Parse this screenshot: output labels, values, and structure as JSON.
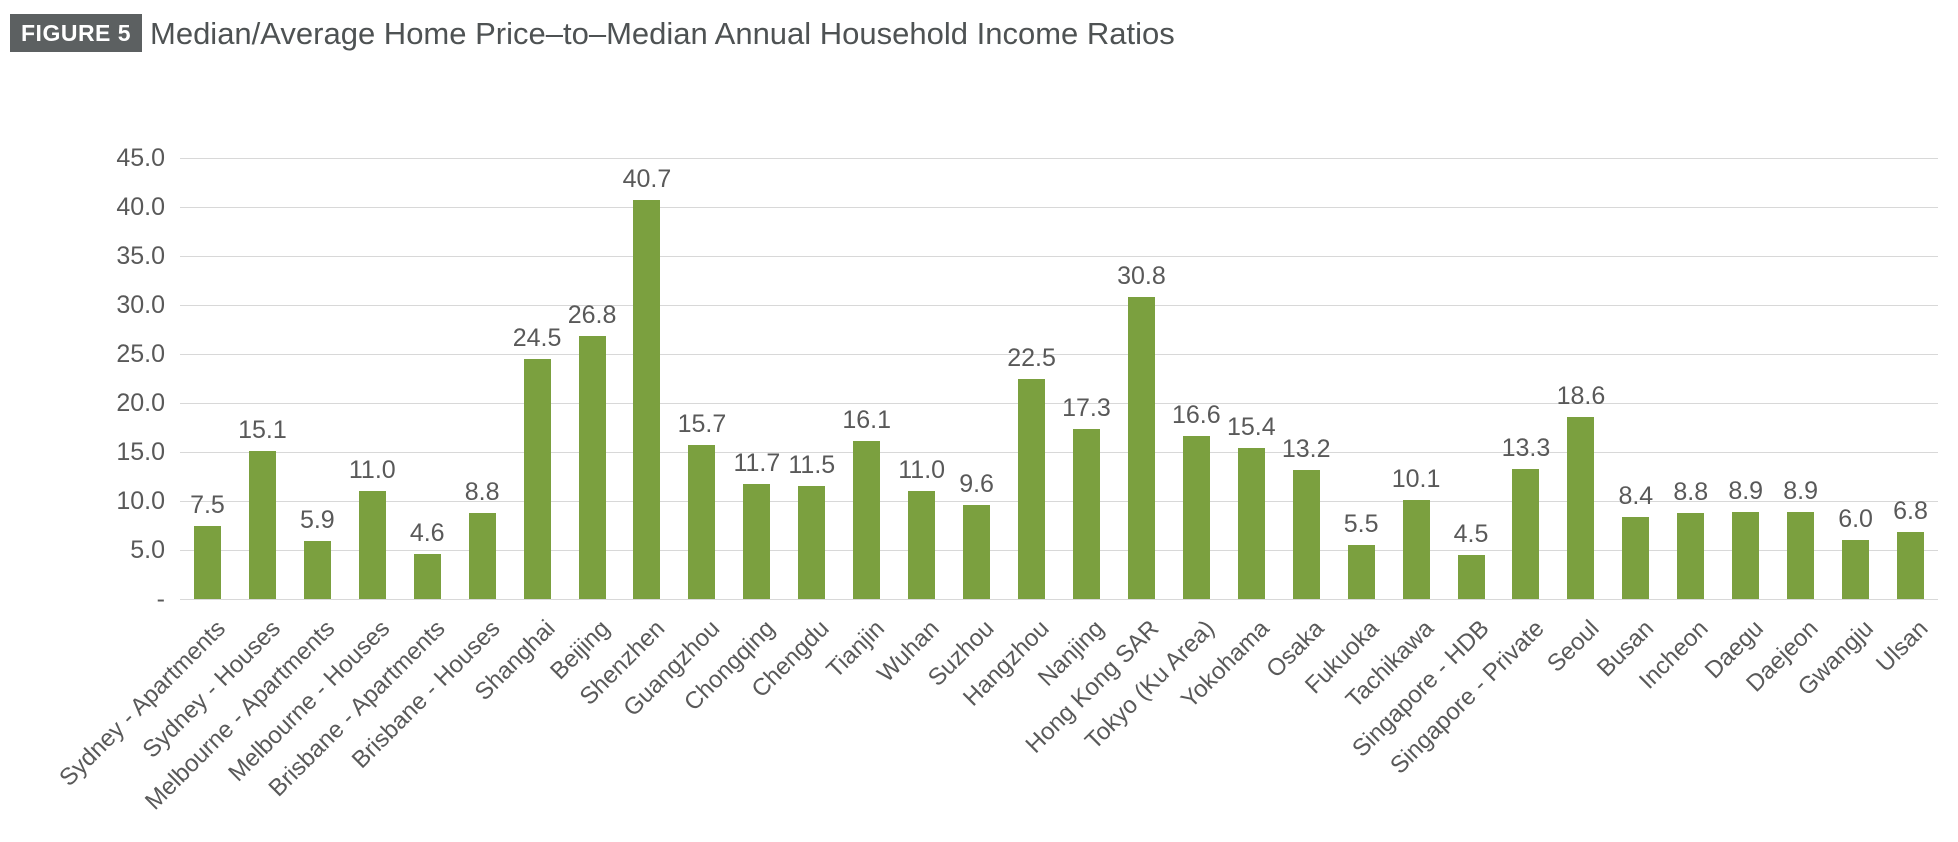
{
  "figure": {
    "badge": "FIGURE 5",
    "title": "Median/Average Home Price–to–Median Annual Household Income Ratios"
  },
  "chart_data": {
    "type": "bar",
    "title": "Median/Average Home Price–to–Median Annual Household Income Ratios",
    "categories": [
      "Sydney - Apartments",
      "Sydney - Houses",
      "Melbourne - Apartments",
      "Melbourne - Houses",
      "Brisbane - Apartments",
      "Brisbane - Houses",
      "Shanghai",
      "Beijing",
      "Shenzhen",
      "Guangzhou",
      "Chongqing",
      "Chengdu",
      "Tianjin",
      "Wuhan",
      "Suzhou",
      "Hangzhou",
      "Nanjing",
      "Hong Kong SAR",
      "Tokyo (Ku Area)",
      "Yokohama",
      "Osaka",
      "Fukuoka",
      "Tachikawa",
      "Singapore - HDB",
      "Singapore - Private",
      "Seoul",
      "Busan",
      "Incheon",
      "Daegu",
      "Daejeon",
      "Gwangju",
      "Ulsan"
    ],
    "values": [
      7.5,
      15.1,
      5.9,
      11.0,
      4.6,
      8.8,
      24.5,
      26.8,
      40.7,
      15.7,
      11.7,
      11.5,
      16.1,
      11.0,
      9.6,
      22.5,
      17.3,
      30.8,
      16.6,
      15.4,
      13.2,
      5.5,
      10.1,
      4.5,
      13.3,
      18.6,
      8.4,
      8.8,
      8.9,
      8.9,
      6.0,
      6.8
    ],
    "value_labels": [
      "7.5",
      "15.1",
      "5.9",
      "11.0",
      "4.6",
      "8.8",
      "24.5",
      "26.8",
      "40.7",
      "15.7",
      "11.7",
      "11.5",
      "16.1",
      "11.0",
      "9.6",
      "22.5",
      "17.3",
      "30.8",
      "16.6",
      "15.4",
      "13.2",
      "5.5",
      "10.1",
      "4.5",
      "13.3",
      "18.6",
      "8.4",
      "8.8",
      "8.9",
      "8.9",
      "6.0",
      "6.8"
    ],
    "xlabel": "",
    "ylabel": "",
    "ylim": [
      0,
      45
    ],
    "yticks": [
      {
        "label": "45.0",
        "value": 45
      },
      {
        "label": "40.0",
        "value": 40
      },
      {
        "label": "35.0",
        "value": 35
      },
      {
        "label": "30.0",
        "value": 30
      },
      {
        "label": "25.0",
        "value": 25
      },
      {
        "label": "20.0",
        "value": 20
      },
      {
        "label": "15.0",
        "value": 15
      },
      {
        "label": "10.0",
        "value": 10
      },
      {
        "label": "5.0",
        "value": 5
      },
      {
        "label": "-",
        "value": 0
      }
    ],
    "grid": true,
    "legend": false,
    "bar_color": "#7BA03F",
    "grid_color": "#D8D8D8",
    "label_color": "#595959",
    "title_color": "#4E5253",
    "badge_bg": "#5C6061",
    "badge_text_color": "#FFFFFF"
  }
}
